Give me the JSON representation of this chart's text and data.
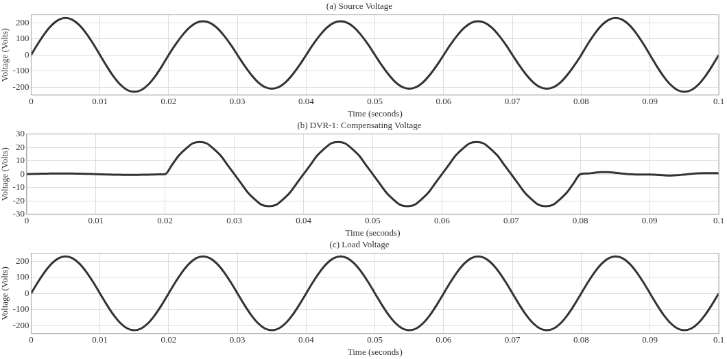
{
  "chart_data": [
    {
      "type": "line",
      "title": "(a) Source Voltage",
      "xlabel": "Time (seconds)",
      "ylabel": "Voltage (Volts)",
      "xlim": [
        0,
        0.1
      ],
      "ylim": [
        -250,
        250
      ],
      "xticks": [
        0,
        0.01,
        0.02,
        0.03,
        0.04,
        0.05,
        0.06,
        0.07,
        0.08,
        0.09,
        0.1
      ],
      "yticks": [
        -200,
        -100,
        0,
        100,
        200
      ],
      "grid": true,
      "x": [
        0,
        0.001,
        0.002,
        0.003,
        0.004,
        0.005,
        0.006,
        0.007,
        0.008,
        0.009,
        0.01,
        0.011,
        0.012,
        0.013,
        0.014,
        0.015,
        0.016,
        0.017,
        0.018,
        0.019,
        0.02,
        0.021,
        0.022,
        0.023,
        0.024,
        0.025,
        0.026,
        0.027,
        0.028,
        0.029,
        0.03,
        0.031,
        0.032,
        0.033,
        0.034,
        0.035,
        0.036,
        0.037,
        0.038,
        0.039,
        0.04,
        0.041,
        0.042,
        0.043,
        0.044,
        0.045,
        0.046,
        0.047,
        0.048,
        0.049,
        0.05,
        0.051,
        0.052,
        0.053,
        0.054,
        0.055,
        0.056,
        0.057,
        0.058,
        0.059,
        0.06,
        0.061,
        0.062,
        0.063,
        0.064,
        0.065,
        0.066,
        0.067,
        0.068,
        0.069,
        0.07,
        0.071,
        0.072,
        0.073,
        0.074,
        0.075,
        0.076,
        0.077,
        0.078,
        0.079,
        0.08,
        0.081,
        0.082,
        0.083,
        0.084,
        0.085,
        0.086,
        0.087,
        0.088,
        0.089,
        0.09,
        0.091,
        0.092,
        0.093,
        0.094,
        0.095,
        0.096,
        0.097,
        0.098,
        0.099,
        0.1
      ],
      "series": [
        {
          "color": "#333333",
          "values": [
            0,
            71,
            135,
            186,
            219,
            230,
            219,
            186,
            135,
            71,
            0,
            -71,
            -135,
            -186,
            -219,
            -230,
            -219,
            -186,
            -135,
            -71,
            0,
            65,
            123,
            170,
            200,
            210,
            200,
            170,
            123,
            65,
            0,
            -65,
            -123,
            -170,
            -200,
            -210,
            -200,
            -170,
            -123,
            -65,
            0,
            65,
            123,
            170,
            200,
            210,
            200,
            170,
            123,
            65,
            0,
            -65,
            -123,
            -170,
            -200,
            -210,
            -200,
            -170,
            -123,
            -65,
            0,
            65,
            123,
            170,
            200,
            210,
            200,
            170,
            123,
            65,
            0,
            -65,
            -123,
            -170,
            -200,
            -210,
            -200,
            -170,
            -123,
            -65,
            0,
            71,
            135,
            186,
            219,
            230,
            219,
            186,
            135,
            71,
            0,
            -71,
            -135,
            -186,
            -219,
            -230,
            -219,
            -186,
            -135,
            -71,
            0
          ]
        }
      ]
    },
    {
      "type": "line",
      "title": "(b) DVR-1: Compensating Voltage",
      "xlabel": "Time (seconds)",
      "ylabel": "Voltage (Volts)",
      "xlim": [
        0,
        0.1
      ],
      "ylim": [
        -30,
        30
      ],
      "xticks": [
        0,
        0.01,
        0.02,
        0.03,
        0.04,
        0.05,
        0.06,
        0.07,
        0.08,
        0.09,
        0.1
      ],
      "yticks": [
        -30,
        -20,
        -10,
        0,
        10,
        20,
        30
      ],
      "grid": true,
      "x": [
        0,
        0.001,
        0.002,
        0.003,
        0.004,
        0.005,
        0.006,
        0.007,
        0.008,
        0.009,
        0.01,
        0.011,
        0.012,
        0.013,
        0.014,
        0.015,
        0.016,
        0.017,
        0.018,
        0.019,
        0.02,
        0.021,
        0.022,
        0.023,
        0.024,
        0.025,
        0.026,
        0.027,
        0.028,
        0.029,
        0.03,
        0.031,
        0.032,
        0.033,
        0.034,
        0.035,
        0.036,
        0.037,
        0.038,
        0.039,
        0.04,
        0.041,
        0.042,
        0.043,
        0.044,
        0.045,
        0.046,
        0.047,
        0.048,
        0.049,
        0.05,
        0.051,
        0.052,
        0.053,
        0.054,
        0.055,
        0.056,
        0.057,
        0.058,
        0.059,
        0.06,
        0.061,
        0.062,
        0.063,
        0.064,
        0.065,
        0.066,
        0.067,
        0.068,
        0.069,
        0.07,
        0.071,
        0.072,
        0.073,
        0.074,
        0.075,
        0.076,
        0.077,
        0.078,
        0.079,
        0.08,
        0.081,
        0.082,
        0.083,
        0.084,
        0.085,
        0.086,
        0.087,
        0.088,
        0.089,
        0.09,
        0.091,
        0.092,
        0.093,
        0.094,
        0.095,
        0.096,
        0.097,
        0.098,
        0.099,
        0.1
      ],
      "series": [
        {
          "color": "#333333",
          "values": [
            0,
            0.2,
            0.3,
            0.4,
            0.5,
            0.5,
            0.5,
            0.4,
            0.3,
            0.2,
            0,
            -0.2,
            -0.3,
            -0.4,
            -0.5,
            -0.5,
            -0.5,
            -0.4,
            -0.3,
            -0.2,
            0,
            7,
            14,
            19,
            23,
            24,
            23,
            19,
            14,
            7,
            0,
            -7,
            -14,
            -19,
            -23,
            -24,
            -23,
            -19,
            -14,
            -7,
            0,
            7,
            14,
            19,
            23,
            24,
            23,
            19,
            14,
            7,
            0,
            -7,
            -14,
            -19,
            -23,
            -24,
            -23,
            -19,
            -14,
            -7,
            0,
            7,
            14,
            19,
            23,
            24,
            23,
            19,
            14,
            7,
            0,
            -7,
            -14,
            -19,
            -23,
            -24,
            -23,
            -19,
            -14,
            -7,
            0,
            0.5,
            1,
            1.5,
            1.5,
            1,
            0.5,
            0,
            -0.3,
            -0.3,
            -0.3,
            -0.5,
            -0.8,
            -1,
            -0.8,
            -0.3,
            0.2,
            0.6,
            0.8,
            0.8,
            0.6
          ]
        }
      ]
    },
    {
      "type": "line",
      "title": "(c) Load Voltage",
      "xlabel": "Time (seconds)",
      "ylabel": "Voltage (Volts)",
      "xlim": [
        0,
        0.1
      ],
      "ylim": [
        -250,
        250
      ],
      "xticks": [
        0,
        0.01,
        0.02,
        0.03,
        0.04,
        0.05,
        0.06,
        0.07,
        0.08,
        0.09,
        0.1
      ],
      "yticks": [
        -200,
        -100,
        0,
        100,
        200
      ],
      "grid": true,
      "x": [
        0,
        0.001,
        0.002,
        0.003,
        0.004,
        0.005,
        0.006,
        0.007,
        0.008,
        0.009,
        0.01,
        0.011,
        0.012,
        0.013,
        0.014,
        0.015,
        0.016,
        0.017,
        0.018,
        0.019,
        0.02,
        0.021,
        0.022,
        0.023,
        0.024,
        0.025,
        0.026,
        0.027,
        0.028,
        0.029,
        0.03,
        0.031,
        0.032,
        0.033,
        0.034,
        0.035,
        0.036,
        0.037,
        0.038,
        0.039,
        0.04,
        0.041,
        0.042,
        0.043,
        0.044,
        0.045,
        0.046,
        0.047,
        0.048,
        0.049,
        0.05,
        0.051,
        0.052,
        0.053,
        0.054,
        0.055,
        0.056,
        0.057,
        0.058,
        0.059,
        0.06,
        0.061,
        0.062,
        0.063,
        0.064,
        0.065,
        0.066,
        0.067,
        0.068,
        0.069,
        0.07,
        0.071,
        0.072,
        0.073,
        0.074,
        0.075,
        0.076,
        0.077,
        0.078,
        0.079,
        0.08,
        0.081,
        0.082,
        0.083,
        0.084,
        0.085,
        0.086,
        0.087,
        0.088,
        0.089,
        0.09,
        0.091,
        0.092,
        0.093,
        0.094,
        0.095,
        0.096,
        0.097,
        0.098,
        0.099,
        0.1
      ],
      "series": [
        {
          "color": "#333333",
          "values": [
            0,
            71,
            135,
            186,
            219,
            230,
            219,
            186,
            135,
            71,
            0,
            -71,
            -135,
            -186,
            -219,
            -230,
            -219,
            -186,
            -135,
            -71,
            0,
            71,
            135,
            186,
            219,
            230,
            219,
            186,
            135,
            71,
            0,
            -71,
            -135,
            -186,
            -219,
            -230,
            -219,
            -186,
            -135,
            -71,
            0,
            71,
            135,
            186,
            219,
            230,
            219,
            186,
            135,
            71,
            0,
            -71,
            -135,
            -186,
            -219,
            -230,
            -219,
            -186,
            -135,
            -71,
            0,
            71,
            135,
            186,
            219,
            230,
            219,
            186,
            135,
            71,
            0,
            -71,
            -135,
            -186,
            -219,
            -230,
            -219,
            -186,
            -135,
            -71,
            0,
            71,
            135,
            186,
            219,
            230,
            219,
            186,
            135,
            71,
            0,
            -71,
            -135,
            -186,
            -219,
            -230,
            -219,
            -186,
            -135,
            -71,
            0
          ]
        }
      ]
    }
  ]
}
